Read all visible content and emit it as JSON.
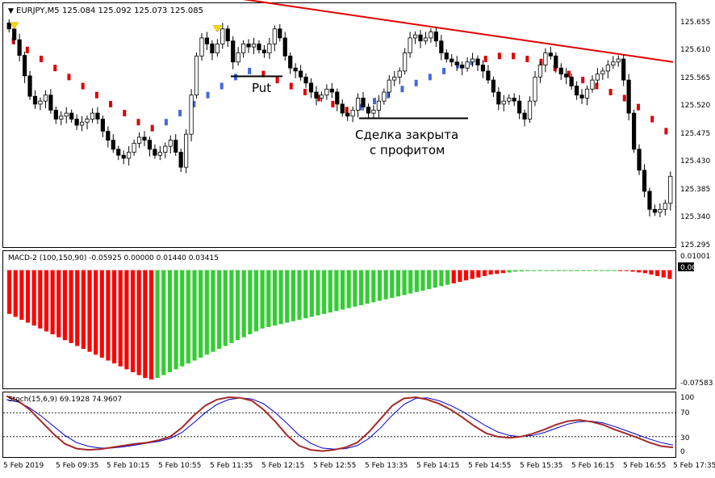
{
  "window": {
    "symbol_label": "EURJPY,M5",
    "ohlc_readout": "125.084 125.092 125.073 125.085",
    "menu_glyph": "▼"
  },
  "annotations": {
    "put_label": "Put",
    "closed_line1": "Сделка закрыта",
    "closed_line2": "с профитом"
  },
  "price_axis": {
    "ticks": [
      "125.655",
      "125.610",
      "125.565",
      "125.520",
      "125.475",
      "125.430",
      "125.385",
      "125.340",
      "125.295"
    ]
  },
  "macd": {
    "header": "MACD-2 (100,150,90) -0.05925 0.00000 0.01440 0.03415",
    "ticks": [
      "0.01001",
      "0.00",
      "-0.07583"
    ],
    "current_value": "0.00"
  },
  "stoch": {
    "header": "Stoch(15,6,9) 69.1928 74.9607",
    "ticks": [
      "100",
      "70",
      "30",
      "0"
    ]
  },
  "time_axis": {
    "labels": [
      "5 Feb 2019",
      "5 Feb 09:35",
      "5 Feb 10:15",
      "5 Feb 10:55",
      "5 Feb 11:35",
      "5 Feb 12:15",
      "5 Feb 12:55",
      "5 Feb 13:35",
      "5 Feb 14:15",
      "5 Feb 14:55",
      "5 Feb 15:35",
      "5 Feb 16:15",
      "5 Feb 16:55",
      "5 Feb 17:35"
    ]
  },
  "colors": {
    "bull_candle": "#ffffff",
    "bear_candle": "#000000",
    "slow_ma": "#e00000",
    "trend_up": "#4169e1",
    "trend_down": "#e00000",
    "macd_positive": "#32cd32",
    "macd_negative": "#ff0000",
    "stoch_main": "#a52a2a",
    "stoch_signal": "#0000cd",
    "arrow": "#ffd700"
  },
  "chart_data": {
    "type": "candlestick",
    "price_closes": [
      125.64,
      125.622,
      125.596,
      125.562,
      125.528,
      125.515,
      125.52,
      125.53,
      125.505,
      125.49,
      125.495,
      125.5,
      125.49,
      125.48,
      125.485,
      125.49,
      125.5,
      125.49,
      125.47,
      125.455,
      125.44,
      125.43,
      125.425,
      125.435,
      125.45,
      125.46,
      125.455,
      125.44,
      125.43,
      125.435,
      125.445,
      125.455,
      125.435,
      125.41,
      125.465,
      125.53,
      125.595,
      125.625,
      125.615,
      125.6,
      125.615,
      125.64,
      125.62,
      125.585,
      125.6,
      125.615,
      125.61,
      125.615,
      125.605,
      125.6,
      125.615,
      125.64,
      125.625,
      125.595,
      125.575,
      125.57,
      125.56,
      125.55,
      125.535,
      125.525,
      125.53,
      125.54,
      125.535,
      125.515,
      125.5,
      125.495,
      125.505,
      125.525,
      125.51,
      125.5,
      125.505,
      125.52,
      125.535,
      125.555,
      125.56,
      125.57,
      125.6,
      125.625,
      125.63,
      125.62,
      125.625,
      125.635,
      125.62,
      125.6,
      125.59,
      125.585,
      125.58,
      125.575,
      125.585,
      125.59,
      125.58,
      125.57,
      125.555,
      125.535,
      125.515,
      125.52,
      125.525,
      125.52,
      125.5,
      125.49,
      125.52,
      125.56,
      125.58,
      125.6,
      125.595,
      125.575,
      125.565,
      125.56,
      125.545,
      125.53,
      125.525,
      125.54,
      125.555,
      125.565,
      125.57,
      125.58,
      125.585,
      125.59,
      125.555,
      125.5,
      125.44,
      125.405,
      125.37,
      125.34,
      125.335,
      125.34,
      125.35,
      125.395
    ],
    "slow_ma": {
      "name": "",
      "start": 125.715,
      "end": 125.585
    },
    "trend": [
      125.62,
      125.605,
      125.59,
      125.575,
      125.56,
      125.545,
      125.53,
      125.515,
      125.5,
      125.485,
      125.475,
      125.485,
      125.5,
      125.515,
      125.53,
      125.545,
      125.56,
      125.57,
      125.565,
      125.555,
      125.545,
      125.535,
      125.525,
      125.515,
      125.505,
      125.51,
      125.52,
      125.53,
      125.54,
      125.55,
      125.56,
      125.57,
      125.58,
      125.585,
      125.59,
      125.595,
      125.595,
      125.59,
      125.585,
      125.575,
      125.565,
      125.555,
      125.545,
      125.535,
      125.525,
      125.51,
      125.49,
      125.47
    ],
    "trend_up": [
      false,
      false,
      false,
      false,
      false,
      false,
      false,
      false,
      false,
      false,
      false,
      true,
      true,
      true,
      true,
      true,
      true,
      true,
      false,
      false,
      false,
      false,
      false,
      false,
      false,
      true,
      true,
      true,
      true,
      true,
      true,
      true,
      true,
      true,
      false,
      false,
      false,
      false,
      false,
      false,
      false,
      false,
      false,
      false,
      false,
      false,
      false,
      false
    ],
    "macd_hist": [
      -0.03,
      -0.032,
      -0.034,
      -0.036,
      -0.038,
      -0.04,
      -0.042,
      -0.044,
      -0.046,
      -0.048,
      -0.05,
      -0.052,
      -0.054,
      -0.056,
      -0.058,
      -0.06,
      -0.062,
      -0.064,
      -0.066,
      -0.068,
      -0.07,
      -0.072,
      -0.074,
      -0.075,
      -0.074,
      -0.072,
      -0.07,
      -0.068,
      -0.066,
      -0.064,
      -0.062,
      -0.06,
      -0.058,
      -0.056,
      -0.054,
      -0.052,
      -0.05,
      -0.048,
      -0.046,
      -0.044,
      -0.042,
      -0.04,
      -0.039,
      -0.038,
      -0.037,
      -0.036,
      -0.035,
      -0.034,
      -0.033,
      -0.032,
      -0.031,
      -0.03,
      -0.029,
      -0.028,
      -0.027,
      -0.026,
      -0.025,
      -0.024,
      -0.023,
      -0.022,
      -0.021,
      -0.02,
      -0.019,
      -0.018,
      -0.017,
      -0.016,
      -0.015,
      -0.014,
      -0.013,
      -0.012,
      -0.011,
      -0.01,
      -0.009,
      -0.008,
      -0.007,
      -0.006,
      -0.005,
      -0.004,
      -0.003,
      -0.0025,
      -0.002,
      -0.0015,
      -0.001,
      -0.0008,
      -0.0006,
      -0.0004,
      -0.0003,
      -0.0003,
      -0.0002,
      -0.0002,
      -0.0001,
      -0.0001,
      0.0,
      0.0,
      0.0,
      0.0,
      0.0,
      0.0,
      0.0,
      -0.0001,
      -0.0005,
      -0.001,
      -0.0015,
      -0.002,
      -0.003,
      -0.004,
      -0.005,
      -0.006
    ],
    "macd_positive": [
      false,
      false,
      false,
      false,
      false,
      false,
      false,
      false,
      false,
      false,
      false,
      false,
      false,
      false,
      false,
      false,
      false,
      false,
      false,
      false,
      false,
      false,
      false,
      false,
      true,
      true,
      true,
      true,
      true,
      true,
      true,
      true,
      true,
      true,
      true,
      true,
      true,
      true,
      true,
      true,
      true,
      true,
      true,
      true,
      true,
      true,
      true,
      true,
      true,
      true,
      true,
      true,
      true,
      true,
      true,
      true,
      true,
      true,
      true,
      true,
      true,
      true,
      true,
      true,
      true,
      true,
      true,
      true,
      true,
      true,
      true,
      true,
      false,
      false,
      false,
      false,
      false,
      false,
      false,
      false,
      false,
      true,
      true,
      true,
      true,
      true,
      true,
      true,
      true,
      true,
      true,
      true,
      true,
      true,
      true,
      true,
      true,
      true,
      true,
      false,
      false,
      false,
      false,
      false,
      false,
      false,
      false,
      false
    ],
    "stoch_main": [
      98,
      90,
      75,
      55,
      35,
      18,
      10,
      8,
      9,
      12,
      15,
      18,
      20,
      24,
      30,
      45,
      65,
      82,
      92,
      96,
      95,
      90,
      75,
      55,
      32,
      15,
      8,
      6,
      8,
      12,
      20,
      38,
      60,
      82,
      94,
      96,
      92,
      85,
      75,
      62,
      48,
      36,
      30,
      28,
      30,
      35,
      42,
      50,
      56,
      58,
      55,
      50,
      42,
      35,
      28,
      20,
      14,
      12
    ],
    "stoch_signal": [
      92,
      88,
      78,
      64,
      48,
      32,
      20,
      14,
      11,
      11,
      13,
      16,
      19,
      22,
      27,
      37,
      53,
      70,
      84,
      92,
      95,
      93,
      85,
      70,
      52,
      33,
      19,
      11,
      9,
      10,
      15,
      27,
      45,
      66,
      84,
      94,
      95,
      90,
      82,
      72,
      60,
      48,
      38,
      32,
      30,
      32,
      37,
      44,
      51,
      55,
      56,
      53,
      47,
      40,
      33,
      26,
      20,
      16
    ],
    "price_range": [
      125.28,
      125.68
    ],
    "macd_range": [
      -0.08,
      0.012
    ],
    "stoch_range": [
      0,
      100
    ],
    "stoch_levels": [
      70,
      30
    ],
    "macd_signal_line": [
      -0.03,
      -0.035,
      -0.04,
      -0.045,
      -0.05,
      -0.055,
      -0.058,
      -0.06,
      -0.06,
      -0.058,
      -0.055,
      -0.05,
      -0.046,
      -0.042,
      -0.038,
      -0.034,
      -0.03,
      -0.026,
      -0.022,
      -0.018,
      -0.014,
      -0.01,
      -0.007,
      -0.005,
      -0.003,
      -0.002,
      -0.001,
      -0.0005,
      0.0,
      0.0,
      0.0,
      -0.001,
      -0.003,
      -0.005,
      -0.006
    ],
    "arrows": [
      {
        "index": 1,
        "price": 125.64
      },
      {
        "index": 40,
        "price": 125.635
      }
    ]
  }
}
